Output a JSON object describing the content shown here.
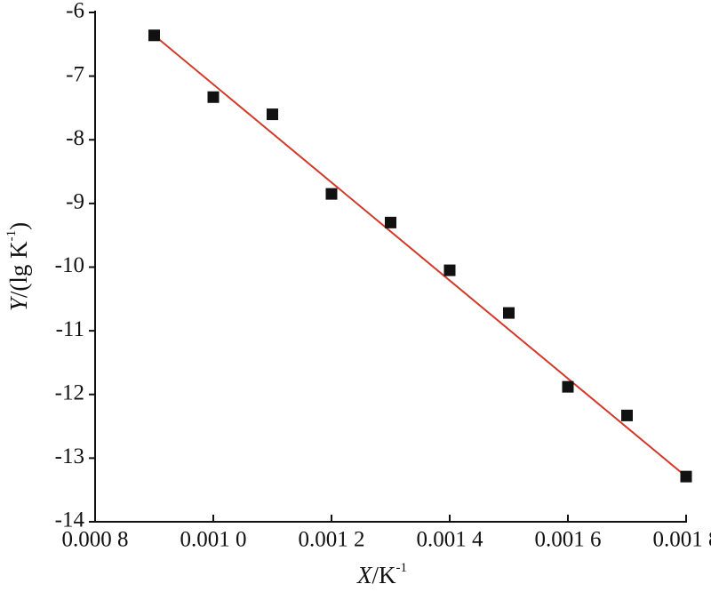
{
  "chart_data": {
    "type": "scatter",
    "xlabel": [
      "X",
      "/K",
      "-1"
    ],
    "ylabel": [
      "Y",
      "/(lg K",
      "-1",
      ")"
    ],
    "x": [
      0.0009,
      0.001,
      0.0011,
      0.0012,
      0.0013,
      0.0014,
      0.0015,
      0.0016,
      0.0017,
      0.0018
    ],
    "values": [
      -6.36,
      -7.33,
      -7.6,
      -8.85,
      -9.3,
      -10.05,
      -10.72,
      -11.88,
      -12.33,
      -13.29
    ],
    "color": "#111111",
    "fit": {
      "x": [
        0.0009,
        0.0018
      ],
      "values": [
        -6.36,
        -13.29
      ],
      "color": "#d03a2a"
    },
    "xlim": [
      0.0008,
      0.0018
    ],
    "ylim": [
      -14,
      -6
    ],
    "xticks": [
      {
        "value": 0.0008,
        "label": "0.000 8"
      },
      {
        "value": 0.001,
        "label": "0.001 0"
      },
      {
        "value": 0.0012,
        "label": "0.001 2"
      },
      {
        "value": 0.0014,
        "label": "0.001 4"
      },
      {
        "value": 0.0016,
        "label": "0.001 6"
      },
      {
        "value": 0.0018,
        "label": "0.001 8"
      }
    ],
    "yticks": [
      -6,
      -7,
      -8,
      -9,
      -10,
      -11,
      -12,
      -13,
      -14
    ],
    "grid": false
  }
}
